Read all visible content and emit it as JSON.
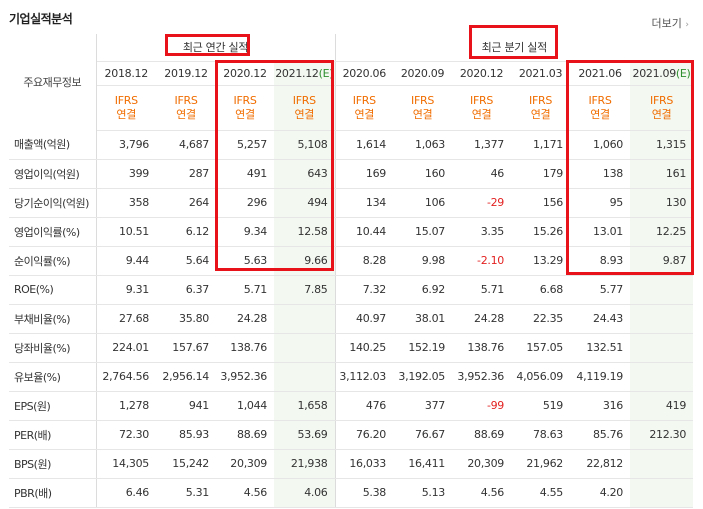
{
  "header": {
    "title": "기업실적분석",
    "more_label": "더보기",
    "more_icon": "chevron-right-icon"
  },
  "table": {
    "corner_label": "주요재무정보",
    "annual_group": "최근 연간 실적",
    "quarter_group": "최근 분기 실적",
    "periods": [
      "2018.12",
      "2019.12",
      "2020.12",
      "2021.12",
      "2020.06",
      "2020.09",
      "2020.12",
      "2021.03",
      "2021.06",
      "2021.09"
    ],
    "estimate_mark": "(E)",
    "ifrs_line1": "IFRS",
    "ifrs_line2": "연결",
    "rows": [
      {
        "label": "매출액(억원)",
        "values": [
          "3,796",
          "4,687",
          "5,257",
          "5,108",
          "1,614",
          "1,063",
          "1,377",
          "1,171",
          "1,060",
          "1,315"
        ]
      },
      {
        "label": "영업이익(억원)",
        "values": [
          "399",
          "287",
          "491",
          "643",
          "169",
          "160",
          "46",
          "179",
          "138",
          "161"
        ]
      },
      {
        "label": "당기순이익(억원)",
        "values": [
          "358",
          "264",
          "296",
          "494",
          "134",
          "106",
          "-29",
          "156",
          "95",
          "130"
        ]
      },
      {
        "label": "영업이익률(%)",
        "values": [
          "10.51",
          "6.12",
          "9.34",
          "12.58",
          "10.44",
          "15.07",
          "3.35",
          "15.26",
          "13.01",
          "12.25"
        ]
      },
      {
        "label": "순이익률(%)",
        "values": [
          "9.44",
          "5.64",
          "5.63",
          "9.66",
          "8.28",
          "9.98",
          "-2.10",
          "13.29",
          "8.93",
          "9.87"
        ]
      },
      {
        "label": "ROE(%)",
        "values": [
          "9.31",
          "6.37",
          "5.71",
          "7.85",
          "7.32",
          "6.92",
          "5.71",
          "6.68",
          "5.77",
          ""
        ]
      },
      {
        "label": "부채비율(%)",
        "values": [
          "27.68",
          "35.80",
          "24.28",
          "",
          "40.97",
          "38.01",
          "24.28",
          "22.35",
          "24.43",
          ""
        ]
      },
      {
        "label": "당좌비율(%)",
        "values": [
          "224.01",
          "157.67",
          "138.76",
          "",
          "140.25",
          "152.19",
          "138.76",
          "157.05",
          "132.51",
          ""
        ]
      },
      {
        "label": "유보율(%)",
        "values": [
          "2,764.56",
          "2,956.14",
          "3,952.36",
          "",
          "3,112.03",
          "3,192.05",
          "3,952.36",
          "4,056.09",
          "4,119.19",
          ""
        ]
      },
      {
        "label": "EPS(원)",
        "values": [
          "1,278",
          "941",
          "1,044",
          "1,658",
          "476",
          "377",
          "-99",
          "519",
          "316",
          "419"
        ]
      },
      {
        "label": "PER(배)",
        "values": [
          "72.30",
          "85.93",
          "88.69",
          "53.69",
          "76.20",
          "76.67",
          "88.69",
          "78.63",
          "85.76",
          "212.30"
        ]
      },
      {
        "label": "BPS(원)",
        "values": [
          "14,305",
          "15,242",
          "20,309",
          "21,938",
          "16,033",
          "16,411",
          "20,309",
          "21,962",
          "22,812",
          ""
        ]
      },
      {
        "label": "PBR(배)",
        "values": [
          "6.46",
          "5.31",
          "4.56",
          "4.06",
          "5.38",
          "5.13",
          "4.56",
          "4.55",
          "4.20",
          ""
        ]
      }
    ]
  },
  "colors": {
    "highlight_box": "#e8121b",
    "ifrs_text": "#f06d00",
    "negative": "#e32222",
    "estimate_bg": "#f3f8f1",
    "estimate_mark": "#2f8f2f"
  }
}
